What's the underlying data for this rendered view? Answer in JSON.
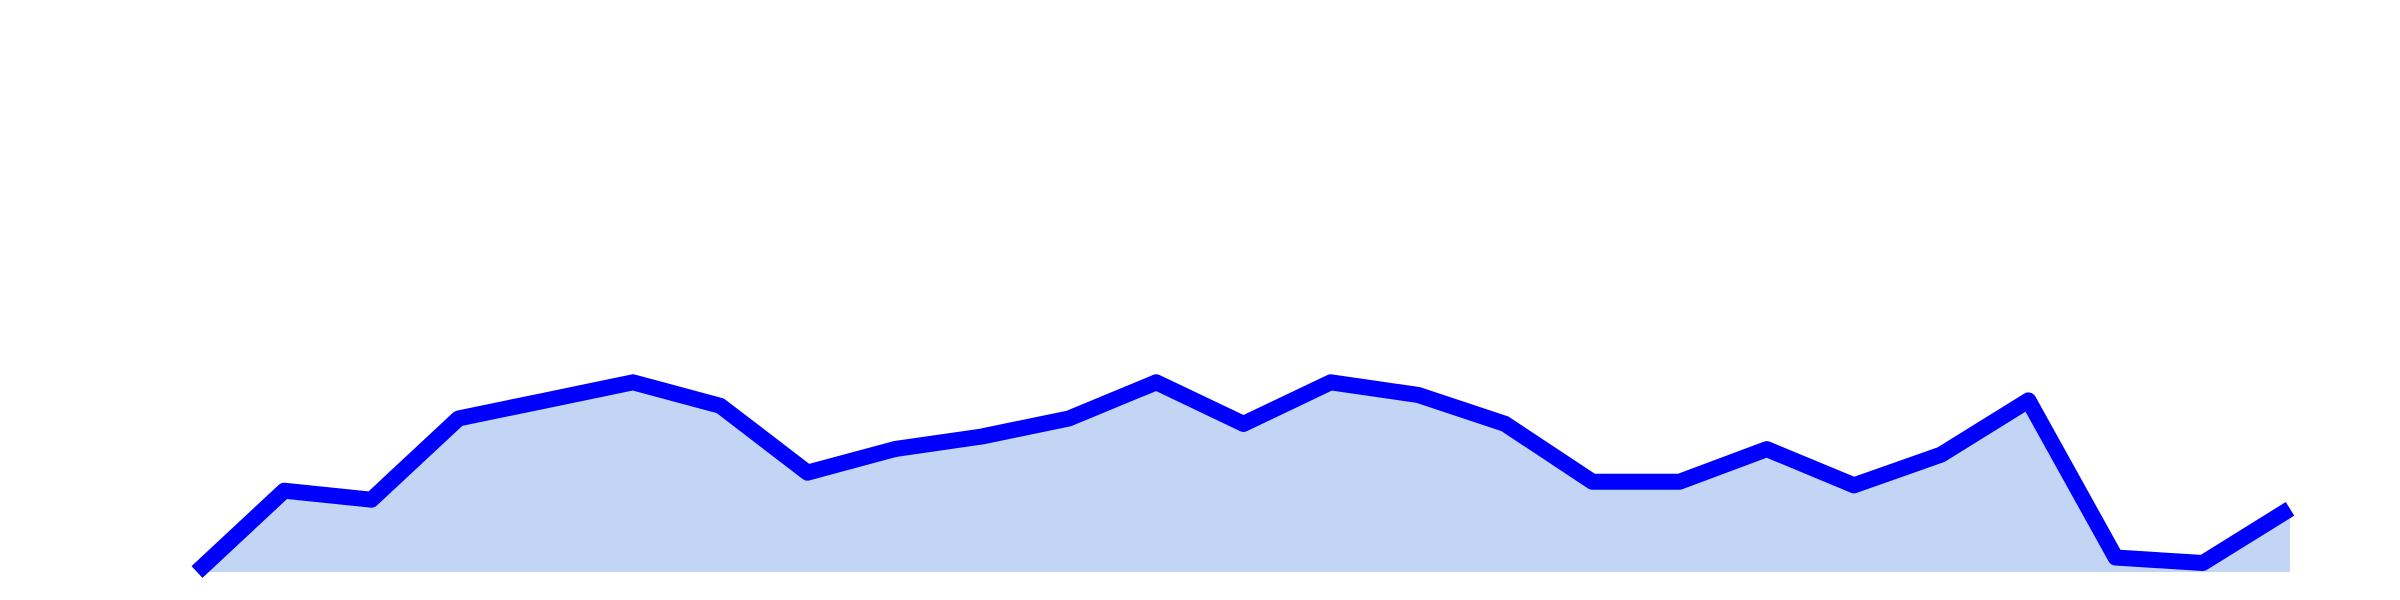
{
  "chart_data": {
    "type": "area",
    "x": [
      1,
      2,
      3,
      4,
      5,
      6,
      7,
      8,
      9,
      10,
      11,
      12,
      13,
      14,
      15,
      16,
      17,
      18,
      19,
      20,
      21,
      22,
      23,
      24,
      25
    ],
    "series": [
      {
        "values": [
          0.0,
          4.5,
          4.0,
          8.5,
          9.5,
          10.5,
          9.2,
          5.5,
          6.8,
          7.5,
          8.5,
          10.5,
          8.2,
          10.5,
          9.8,
          8.2,
          5.0,
          5.0,
          6.8,
          4.8,
          6.5,
          9.5,
          0.8,
          0.5,
          3.5
        ],
        "line_color": "#0000ff",
        "fill_color": "#c3d5f5"
      }
    ],
    "ylim": [
      0,
      30
    ],
    "grid": false,
    "title": "",
    "xlabel": "",
    "ylabel": ""
  }
}
